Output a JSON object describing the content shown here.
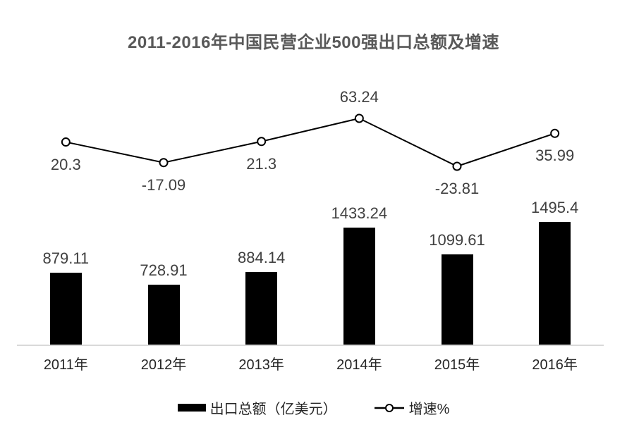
{
  "title": "2011-2016年中国民营企业500强出口总额及增速",
  "legend": {
    "items": [
      {
        "label": "出口总额（亿美元）",
        "swatch": "black-filled-rect"
      },
      {
        "label": "增速%",
        "swatch": "open-circle-on-line"
      }
    ]
  },
  "colors": {
    "background": "#ffffff",
    "bar": "#000000",
    "line": "#000000",
    "marker_fill": "#ffffff",
    "marker_stroke": "#000000",
    "data_label": "#404040",
    "title": "#595959",
    "axis_line": "#d9d9d9",
    "axis_label": "#262626"
  },
  "chart_data": {
    "type": "bar+line",
    "title": "2011-2016年中国民营企业500强出口总额及增速",
    "categories": [
      "2011年",
      "2012年",
      "2013年",
      "2014年",
      "2015年",
      "2016年"
    ],
    "series": [
      {
        "name": "出口总额（亿美元）",
        "type": "bar",
        "color": "#000000",
        "values": [
          879.11,
          728.91,
          884.14,
          1433.24,
          1099.61,
          1495.4
        ],
        "labels": [
          "879.11",
          "728.91",
          "884.14",
          "1433.24",
          "1099.61",
          "1495.4"
        ]
      },
      {
        "name": "增速%",
        "type": "line",
        "color": "#000000",
        "marker": "open-circle",
        "values": [
          20.3,
          -17.09,
          21.3,
          63.24,
          -23.81,
          35.99
        ],
        "labels": [
          "20.3",
          "-17.09",
          "21.3",
          "63.24",
          "-23.81",
          "35.99"
        ],
        "label_positions": [
          "below",
          "below",
          "below",
          "above",
          "below",
          "below"
        ]
      }
    ],
    "legend_position": "bottom",
    "gridlines": false,
    "y_axes_hidden": true,
    "x_axis_line": true
  }
}
